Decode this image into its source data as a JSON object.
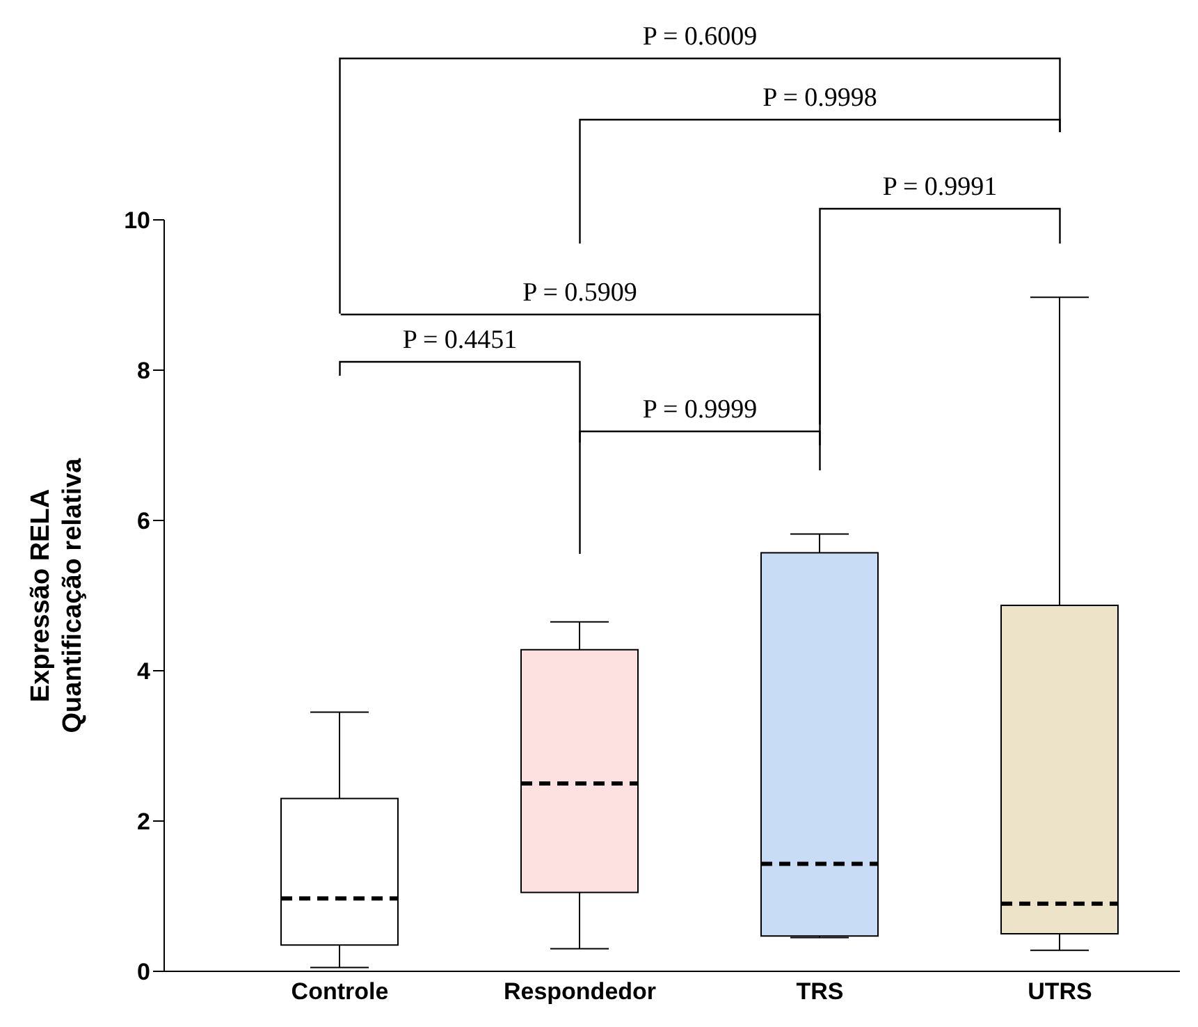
{
  "chart_data": {
    "type": "box",
    "ylabel": "Expressão RELA\nQuantificação relativa",
    "categories": [
      "Controle",
      "Respondedor",
      "TRS",
      "UTRS"
    ],
    "boxes": [
      {
        "low": 0.05,
        "q1": 0.35,
        "median": 0.97,
        "q3": 2.3,
        "high": 3.45
      },
      {
        "low": 0.3,
        "q1": 1.05,
        "median": 2.5,
        "q3": 4.28,
        "high": 4.65
      },
      {
        "low": 0.45,
        "q1": 0.47,
        "median": 1.43,
        "q3": 5.57,
        "high": 5.82
      },
      {
        "low": 0.28,
        "q1": 0.5,
        "median": 0.9,
        "q3": 4.87,
        "high": 8.97
      }
    ],
    "colors": [
      "#ffffff",
      "#fde0e0",
      "#c8dcf5",
      "#ece3c8"
    ],
    "ylim": [
      0,
      10
    ],
    "yticks": [
      0,
      2,
      4,
      6,
      8,
      10
    ],
    "grid": false,
    "legend": false,
    "annotations": [
      "P = 0.6009",
      "P = 0.9998",
      "P = 0.9991",
      "P = 0.5909",
      "P = 0.4451",
      "P = 0.9999"
    ]
  }
}
